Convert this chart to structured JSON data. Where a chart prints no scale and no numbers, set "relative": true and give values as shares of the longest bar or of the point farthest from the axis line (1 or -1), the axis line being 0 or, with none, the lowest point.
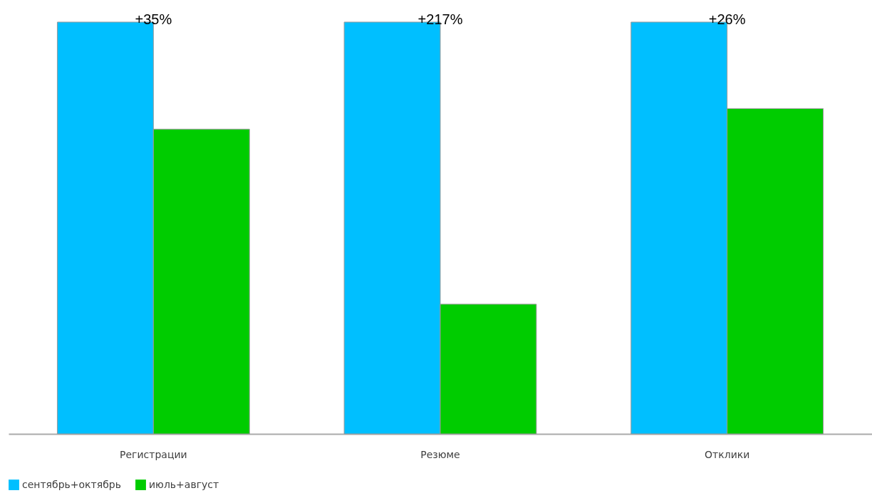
{
  "chart_data": {
    "type": "bar",
    "relative": true,
    "categories": [
      "Регистрации",
      "Резюме",
      "Отклики"
    ],
    "series": [
      {
        "name": "сентябрь+октябрь",
        "color": "#00bfff",
        "values": [
          1,
          1,
          1
        ]
      },
      {
        "name": "июль+август",
        "color": "#00cc00",
        "values": [
          0.74,
          0.315,
          0.79
        ]
      }
    ],
    "annotations": [
      {
        "text": "+35%",
        "x": "Регистрации",
        "y": 1
      },
      {
        "text": "+217%",
        "x": "Резюме",
        "y": 1
      },
      {
        "text": "+26%",
        "x": "Отклики",
        "y": 1
      }
    ],
    "grid": false,
    "legend": "bottom"
  }
}
